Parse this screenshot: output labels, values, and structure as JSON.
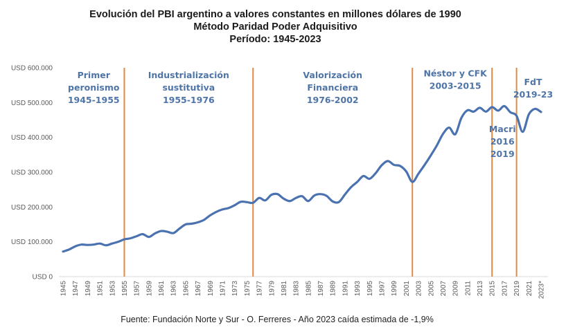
{
  "chart_data": {
    "type": "line",
    "title": "Evolución del PBI argentino a valores constantes en millones dólares de 1990",
    "subtitle": "Método Paridad Poder Adquisitivo",
    "period": "Período: 1945-2023",
    "xlabel": "",
    "ylabel": "",
    "ylim": [
      0,
      600000
    ],
    "grid": false,
    "legend": "none",
    "y_ticks": [
      {
        "value": 0,
        "label": "USD 0"
      },
      {
        "value": 100000,
        "label": "USD 100.000"
      },
      {
        "value": 200000,
        "label": "USD 200.000"
      },
      {
        "value": 300000,
        "label": "USD 300.000"
      },
      {
        "value": 400000,
        "label": "USD 400.000"
      },
      {
        "value": 500000,
        "label": "USD 500.000"
      },
      {
        "value": 600000,
        "label": "USD 600.000"
      }
    ],
    "x_tick_labels": [
      "1945",
      "1947",
      "1949",
      "1951",
      "1953",
      "1955",
      "1957",
      "1959",
      "1961",
      "1963",
      "1965",
      "1967",
      "1969",
      "1971",
      "1973",
      "1975",
      "1977",
      "1979",
      "1981",
      "1983",
      "1985",
      "1987",
      "1989",
      "1991",
      "1993",
      "1995",
      "1997",
      "1999",
      "2001",
      "2003",
      "2005",
      "2007",
      "2009",
      "2011",
      "2013",
      "2015",
      "2017",
      "2019",
      "2021",
      "2023*"
    ],
    "x": [
      1945,
      1946,
      1947,
      1948,
      1949,
      1950,
      1951,
      1952,
      1953,
      1954,
      1955,
      1956,
      1957,
      1958,
      1959,
      1960,
      1961,
      1962,
      1963,
      1964,
      1965,
      1966,
      1967,
      1968,
      1969,
      1970,
      1971,
      1972,
      1973,
      1974,
      1975,
      1976,
      1977,
      1978,
      1979,
      1980,
      1981,
      1982,
      1983,
      1984,
      1985,
      1986,
      1987,
      1988,
      1989,
      1990,
      1991,
      1992,
      1993,
      1994,
      1995,
      1996,
      1997,
      1998,
      1999,
      2000,
      2001,
      2002,
      2003,
      2004,
      2005,
      2006,
      2007,
      2008,
      2009,
      2010,
      2011,
      2012,
      2013,
      2014,
      2015,
      2016,
      2017,
      2018,
      2019,
      2020,
      2021,
      2022,
      2023
    ],
    "series": [
      {
        "name": "PBI (millones USD 1990, PPA)",
        "color": "#4a72b0",
        "values": [
          72000,
          78000,
          87000,
          92000,
          91000,
          92000,
          95000,
          90000,
          95000,
          100000,
          107000,
          110000,
          116000,
          122000,
          114000,
          124000,
          131000,
          129000,
          125000,
          138000,
          150000,
          152000,
          156000,
          163000,
          176000,
          186000,
          193000,
          197000,
          205000,
          215000,
          214000,
          212000,
          226000,
          219000,
          235000,
          237000,
          224000,
          217000,
          226000,
          231000,
          217000,
          233000,
          237000,
          232000,
          216000,
          214000,
          236000,
          257000,
          272000,
          289000,
          281000,
          297000,
          320000,
          332000,
          321000,
          318000,
          302000,
          272000,
          296000,
          321000,
          348000,
          377000,
          410000,
          428000,
          409000,
          456000,
          478000,
          474000,
          485000,
          474000,
          487000,
          477000,
          490000,
          472000,
          462000,
          416000,
          466000,
          482000,
          473000
        ]
      }
    ],
    "vertical_markers": [
      1955,
      1976,
      2002,
      2015,
      2019
    ],
    "annotations": [
      {
        "lines": [
          "Primer",
          "peronismo",
          "1945-1955"
        ],
        "x_year": 1950,
        "y_value": 570000
      },
      {
        "lines": [
          "Industrialización",
          "sustitutiva",
          "1955-1976"
        ],
        "x_year": 1965.5,
        "y_value": 570000
      },
      {
        "lines": [
          "Valorización",
          "Financiera",
          "1976-2002"
        ],
        "x_year": 1989,
        "y_value": 570000
      },
      {
        "lines": [
          "Néstor y CFK",
          "2003-2015"
        ],
        "x_year": 2009,
        "y_value": 575000
      },
      {
        "lines": [
          "Macri",
          "2016",
          "2019"
        ],
        "x_year": 2016.7,
        "y_value": 415000
      },
      {
        "lines": [
          "FdT",
          "2019-23"
        ],
        "x_year": 2021.7,
        "y_value": 550000
      }
    ],
    "colors": {
      "line": "#4a72b0",
      "markers": "#e08a45",
      "annotation_text": "#4f74a8",
      "axis": "#d9d9d9"
    }
  },
  "footer": {
    "source": "Fuente: Fundación Norte y Sur - O. Ferreres - Año 2023 caída estimada de -1,9%"
  }
}
